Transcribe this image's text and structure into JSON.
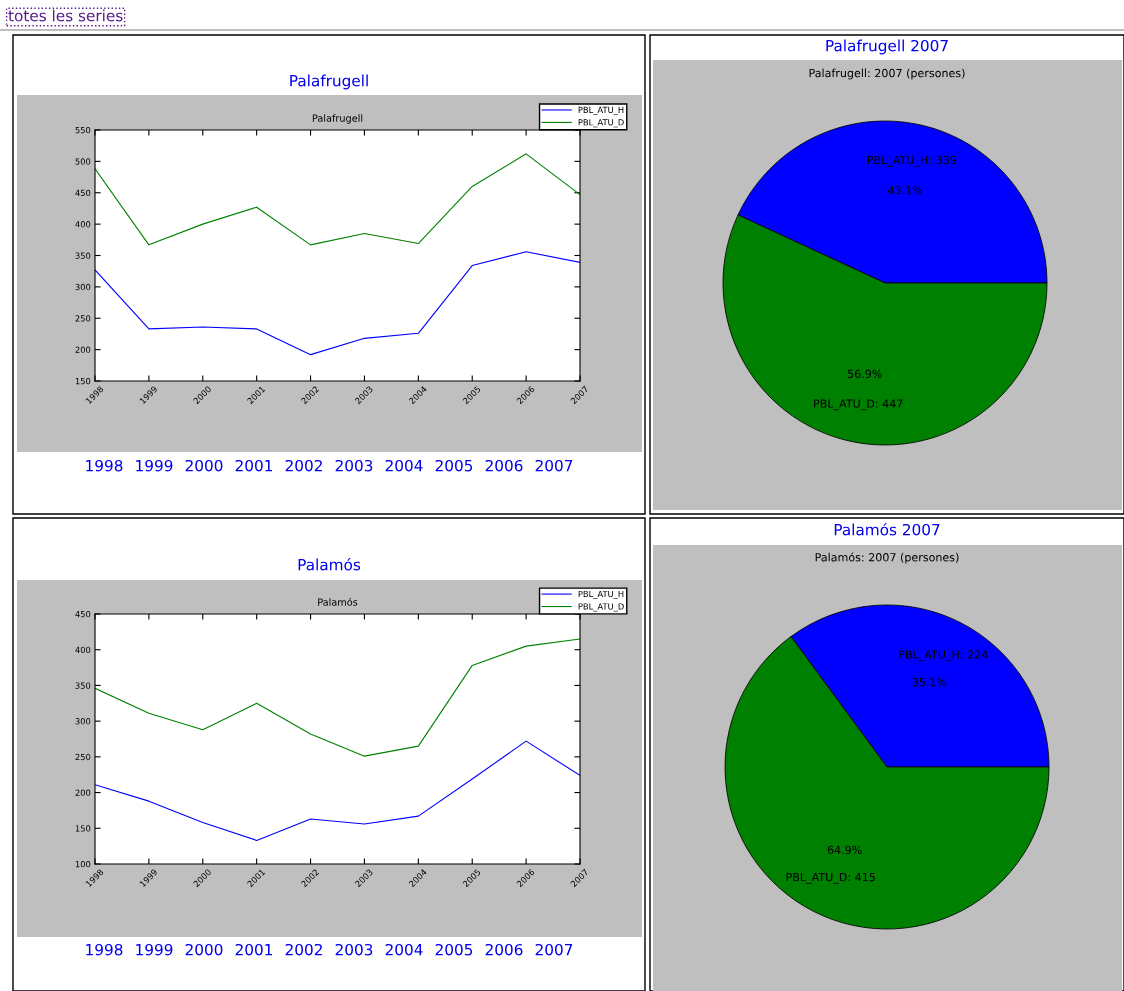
{
  "chart_data": [
    {
      "type": "line",
      "title": "Palafrugell",
      "subtitle": "Palafrugell",
      "x": [
        1998,
        1999,
        2000,
        2001,
        2002,
        2003,
        2004,
        2005,
        2006,
        2007
      ],
      "xlim": [
        1998,
        2007
      ],
      "xticks": [
        1998,
        1999,
        2000,
        2001,
        2002,
        2003,
        2004,
        2005,
        2006,
        2007
      ],
      "ylim": [
        150,
        550
      ],
      "yticks": [
        150,
        200,
        250,
        300,
        350,
        400,
        450,
        500,
        550
      ],
      "legend": "top right",
      "grid": false,
      "series": [
        {
          "name": "PBL_ATU_H",
          "color": "#0000ff",
          "values": [
            327,
            233,
            236,
            233,
            192,
            218,
            226,
            334,
            356,
            339
          ]
        },
        {
          "name": "PBL_ATU_D",
          "color": "#008000",
          "values": [
            488,
            367,
            400,
            427,
            367,
            385,
            369,
            460,
            512,
            447
          ]
        }
      ],
      "annotations": [
        "totes les series",
        "1998",
        "1999",
        "2000",
        "2001",
        "2002",
        "2003",
        "2004",
        "2005",
        "2006",
        "2007"
      ]
    },
    {
      "type": "pie",
      "title": "Palafrugell 2007",
      "subtitle": "Palafrugell: 2007 (persones)",
      "categories": [
        "PBL_ATU_H: 339",
        "PBL_ATU_D: 447"
      ],
      "values": [
        43.1,
        56.9
      ],
      "colors": [
        "#0000ff",
        "#008000"
      ],
      "value_labels": [
        "43.1%",
        "56.9%"
      ]
    },
    {
      "type": "line",
      "title": "Palamós",
      "subtitle": "Palamós",
      "x": [
        1998,
        1999,
        2000,
        2001,
        2002,
        2003,
        2004,
        2005,
        2006,
        2007
      ],
      "xlim": [
        1998,
        2007
      ],
      "xticks": [
        1998,
        1999,
        2000,
        2001,
        2002,
        2003,
        2004,
        2005,
        2006,
        2007
      ],
      "ylim": [
        100,
        450
      ],
      "yticks": [
        100,
        150,
        200,
        250,
        300,
        350,
        400,
        450
      ],
      "legend": "top right",
      "grid": false,
      "series": [
        {
          "name": "PBL_ATU_H",
          "color": "#0000ff",
          "values": [
            211,
            188,
            158,
            133,
            163,
            156,
            167,
            219,
            272,
            224
          ]
        },
        {
          "name": "PBL_ATU_D",
          "color": "#008000",
          "values": [
            346,
            311,
            288,
            325,
            282,
            251,
            265,
            378,
            405,
            415
          ]
        }
      ],
      "annotations": [
        "1998",
        "1999",
        "2000",
        "2001",
        "2002",
        "2003",
        "2004",
        "2005",
        "2006",
        "2007"
      ]
    },
    {
      "type": "pie",
      "title": "Palamós 2007",
      "subtitle": "Palamós: 2007 (persones)",
      "categories": [
        "PBL_ATU_H: 224",
        "PBL_ATU_D: 415"
      ],
      "values": [
        35.1,
        64.9
      ],
      "colors": [
        "#0000ff",
        "#008000"
      ],
      "value_labels": [
        "35.1%",
        "64.9%"
      ]
    }
  ]
}
